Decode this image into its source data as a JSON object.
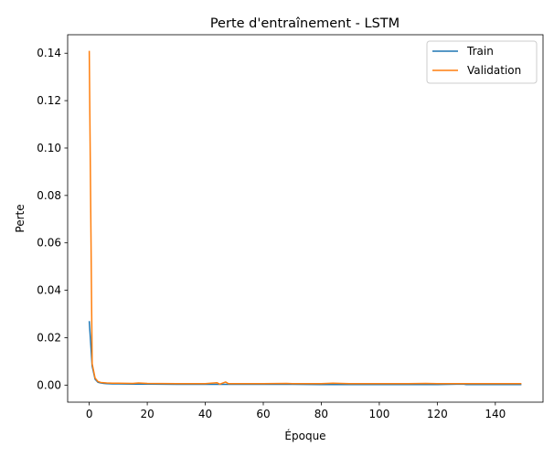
{
  "chart_data": {
    "type": "line",
    "title": "Perte d'entraînement - LSTM",
    "xlabel": "Époque",
    "ylabel": "Perte",
    "xlim": [
      -7.45,
      156.45
    ],
    "ylim": [
      -0.0072,
      0.1478
    ],
    "xticks": [
      0,
      20,
      40,
      60,
      80,
      100,
      120,
      140
    ],
    "xtick_labels": [
      "0",
      "20",
      "40",
      "60",
      "80",
      "100",
      "120",
      "140"
    ],
    "yticks": [
      0.0,
      0.02,
      0.04,
      0.06,
      0.08,
      0.1,
      0.12,
      0.14
    ],
    "ytick_labels": [
      "0.00",
      "0.02",
      "0.04",
      "0.06",
      "0.08",
      "0.10",
      "0.12",
      "0.14"
    ],
    "grid": false,
    "legend_position": "top-right",
    "series": [
      {
        "name": "Train",
        "color": "#1f77b4",
        "x": [
          0,
          1,
          2,
          3,
          4,
          5,
          6,
          8,
          10,
          15,
          20,
          30,
          40,
          50,
          60,
          70,
          80,
          90,
          100,
          110,
          120,
          129,
          130,
          140,
          149
        ],
        "y": [
          0.027,
          0.008,
          0.0025,
          0.0012,
          0.0009,
          0.0007,
          0.0006,
          0.0005,
          0.0005,
          0.0004,
          0.0004,
          0.0003,
          0.0003,
          0.0003,
          0.0003,
          0.0003,
          0.0002,
          0.0002,
          0.0002,
          0.0002,
          0.0002,
          0.0004,
          0.0002,
          0.0002,
          0.0002
        ]
      },
      {
        "name": "Validation",
        "color": "#ff7f0e",
        "x": [
          0,
          1,
          2,
          3,
          4,
          5,
          6,
          8,
          10,
          15,
          17,
          20,
          30,
          40,
          44,
          45,
          47,
          48,
          50,
          60,
          68,
          70,
          80,
          84,
          90,
          100,
          110,
          116,
          120,
          130,
          140,
          149
        ],
        "y": [
          0.141,
          0.009,
          0.003,
          0.0015,
          0.0011,
          0.001,
          0.0009,
          0.0008,
          0.0008,
          0.0007,
          0.0009,
          0.0007,
          0.0006,
          0.0006,
          0.001,
          0.0004,
          0.0013,
          0.0006,
          0.0006,
          0.0006,
          0.0007,
          0.0006,
          0.0006,
          0.0008,
          0.0006,
          0.0006,
          0.0006,
          0.0007,
          0.0006,
          0.0006,
          0.0006,
          0.0006
        ]
      }
    ]
  }
}
